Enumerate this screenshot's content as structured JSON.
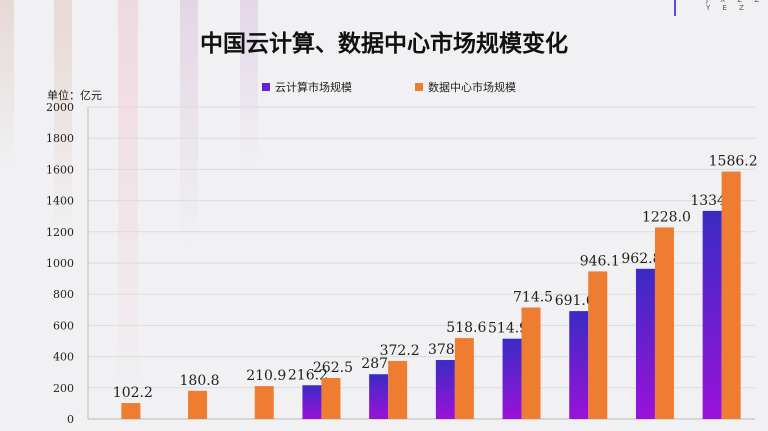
{
  "chart_data": {
    "type": "bar",
    "title": "中国云计算、数据中心市场规模变化",
    "unit_label": "单位：亿元",
    "ylim": [
      0,
      2000
    ],
    "yticks": [
      0,
      200,
      400,
      600,
      800,
      1000,
      1200,
      1400,
      1600,
      1800,
      2000
    ],
    "grid": true,
    "legend_placement": "top",
    "categories": [
      "",
      "",
      "",
      "",
      "",
      "",
      "",
      "",
      "",
      ""
    ],
    "series": [
      {
        "name": "云计算市场规模",
        "color": "#6a1fd0",
        "values": [
          null,
          null,
          null,
          216.2,
          287,
          378,
          514.9,
          691.6,
          962.8,
          1334
        ],
        "labels": [
          "",
          "",
          "",
          "216.2",
          "287",
          "378",
          "514.9",
          "691.6",
          "962.8",
          "1334"
        ]
      },
      {
        "name": "数据中心市场规模",
        "color": "#ee7d31",
        "values": [
          102.2,
          180.8,
          210.9,
          262.5,
          372.2,
          518.6,
          714.5,
          946.1,
          1228.0,
          1586.2
        ],
        "labels": [
          "102.2",
          "180.8",
          "210.9",
          "262.5",
          "372.2",
          "518.6",
          "714.5",
          "946.1",
          "1228.0",
          "1586.2"
        ]
      }
    ]
  },
  "header": {
    "corner_text": "J X Z Z Y E Z"
  }
}
